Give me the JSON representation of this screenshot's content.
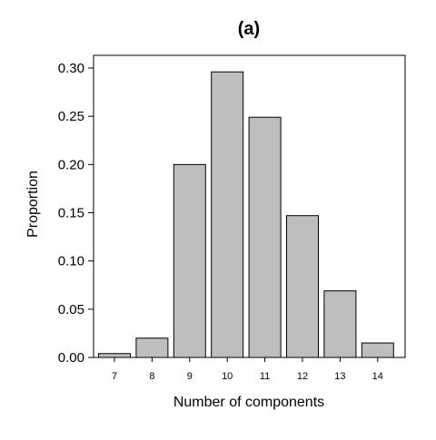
{
  "chart_data": {
    "type": "bar",
    "title": "(a)",
    "xlabel": "Number of components",
    "ylabel": "Proportion",
    "categories": [
      "7",
      "8",
      "9",
      "10",
      "11",
      "12",
      "13",
      "14"
    ],
    "values": [
      0.004,
      0.02,
      0.2,
      0.296,
      0.249,
      0.147,
      0.069,
      0.015
    ],
    "ylim": [
      0,
      0.3
    ],
    "yticks": [
      "0.00",
      "0.05",
      "0.10",
      "0.15",
      "0.20",
      "0.25",
      "0.30"
    ],
    "bar_color": "#bebebe",
    "bar_edge_color": "#000000",
    "grid": false,
    "legend": "none"
  }
}
